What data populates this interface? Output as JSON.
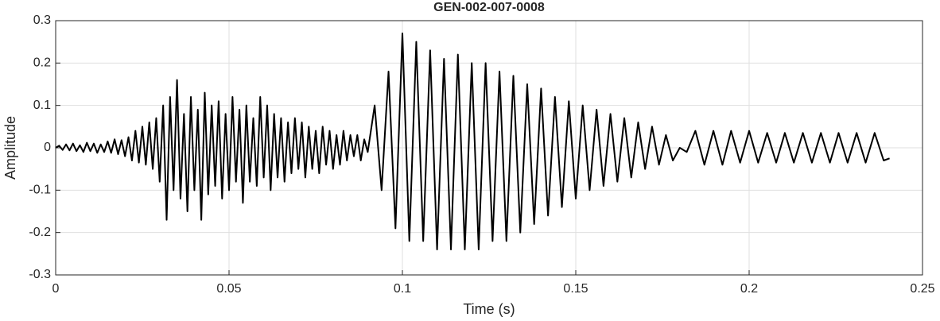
{
  "chart_data": {
    "type": "line",
    "title": "GEN-002-007-0008",
    "x_label": "Time (s)",
    "y_label": "Amplitude",
    "x": [
      0,
      0.001,
      0.002,
      0.003,
      0.004,
      0.005,
      0.006,
      0.007,
      0.008,
      0.009,
      0.01,
      0.011,
      0.012,
      0.013,
      0.014,
      0.015,
      0.016,
      0.017,
      0.018,
      0.019,
      0.02,
      0.021,
      0.022,
      0.023,
      0.024,
      0.025,
      0.026,
      0.027,
      0.028,
      0.029,
      0.03,
      0.031,
      0.032,
      0.033,
      0.034,
      0.035,
      0.036,
      0.037,
      0.038,
      0.039,
      0.04,
      0.041,
      0.042,
      0.043,
      0.044,
      0.045,
      0.046,
      0.047,
      0.048,
      0.049,
      0.05,
      0.051,
      0.052,
      0.053,
      0.054,
      0.055,
      0.056,
      0.057,
      0.058,
      0.059,
      0.06,
      0.061,
      0.062,
      0.063,
      0.064,
      0.065,
      0.066,
      0.067,
      0.068,
      0.069,
      0.07,
      0.071,
      0.072,
      0.073,
      0.074,
      0.075,
      0.076,
      0.077,
      0.078,
      0.079,
      0.08,
      0.081,
      0.082,
      0.083,
      0.084,
      0.085,
      0.086,
      0.087,
      0.088,
      0.089,
      0.09,
      0.092,
      0.094,
      0.096,
      0.098,
      0.1,
      0.102,
      0.104,
      0.106,
      0.108,
      0.11,
      0.112,
      0.114,
      0.116,
      0.118,
      0.12,
      0.122,
      0.124,
      0.126,
      0.128,
      0.13,
      0.132,
      0.134,
      0.136,
      0.138,
      0.14,
      0.142,
      0.144,
      0.146,
      0.148,
      0.15,
      0.152,
      0.154,
      0.156,
      0.158,
      0.16,
      0.162,
      0.164,
      0.166,
      0.168,
      0.17,
      0.172,
      0.174,
      0.176,
      0.178,
      0.18,
      0.182,
      0.1845,
      0.1871,
      0.1897,
      0.1923,
      0.1948,
      0.1974,
      0.2,
      0.2026,
      0.2052,
      0.2078,
      0.2103,
      0.2129,
      0.2155,
      0.2181,
      0.2207,
      0.2233,
      0.2258,
      0.2284,
      0.231,
      0.2336,
      0.2362,
      0.2388,
      0.2405
    ],
    "values": [
      0,
      0.005,
      -0.005,
      0.008,
      -0.006,
      0.01,
      -0.008,
      0.006,
      -0.01,
      0.012,
      -0.008,
      0.01,
      -0.012,
      0.008,
      -0.01,
      0.015,
      -0.012,
      0.02,
      -0.015,
      0.018,
      -0.02,
      0.025,
      -0.03,
      0.04,
      -0.035,
      0.05,
      -0.04,
      0.06,
      -0.05,
      0.07,
      -0.08,
      0.1,
      -0.17,
      0.12,
      -0.1,
      0.16,
      -0.12,
      0.08,
      -0.15,
      0.12,
      -0.1,
      0.09,
      -0.17,
      0.13,
      -0.11,
      0.1,
      -0.09,
      0.11,
      -0.12,
      0.08,
      -0.1,
      0.12,
      -0.08,
      0.09,
      -0.13,
      0.1,
      -0.08,
      0.07,
      -0.09,
      0.12,
      -0.07,
      0.1,
      -0.1,
      0.08,
      -0.07,
      0.07,
      -0.08,
      0.06,
      -0.06,
      0.07,
      -0.05,
      0.06,
      -0.07,
      0.05,
      -0.05,
      0.04,
      -0.06,
      0.05,
      -0.04,
      0.04,
      -0.05,
      0.03,
      -0.04,
      0.04,
      -0.03,
      0.03,
      -0.02,
      0.03,
      -0.03,
      0.02,
      -0.01,
      0.1,
      -0.1,
      0.18,
      -0.19,
      0.27,
      -0.22,
      0.25,
      -0.22,
      0.23,
      -0.24,
      0.21,
      -0.24,
      0.22,
      -0.24,
      0.2,
      -0.24,
      0.2,
      -0.22,
      0.18,
      -0.22,
      0.17,
      -0.2,
      0.15,
      -0.18,
      0.14,
      -0.16,
      0.12,
      -0.14,
      0.11,
      -0.12,
      0.1,
      -0.1,
      0.09,
      -0.09,
      0.08,
      -0.08,
      0.07,
      -0.07,
      0.06,
      -0.05,
      0.05,
      -0.04,
      0.03,
      -0.03,
      0,
      -0.01,
      0.04,
      -0.04,
      0.04,
      -0.04,
      0.04,
      -0.035,
      0.04,
      -0.035,
      0.035,
      -0.035,
      0.035,
      -0.035,
      0.035,
      -0.035,
      0.035,
      -0.035,
      0.035,
      -0.035,
      0.035,
      -0.035,
      0.035,
      -0.03,
      -0.025
    ],
    "color": "#000000",
    "xlim": [
      0,
      0.25
    ],
    "xticks": [
      0,
      0.05,
      0.1,
      0.15,
      0.2,
      0.25
    ],
    "ylim": [
      -0.3,
      0.3
    ],
    "yticks": [
      -0.3,
      -0.2,
      -0.1,
      0,
      0.1,
      0.2,
      0.3
    ],
    "grid": true
  }
}
